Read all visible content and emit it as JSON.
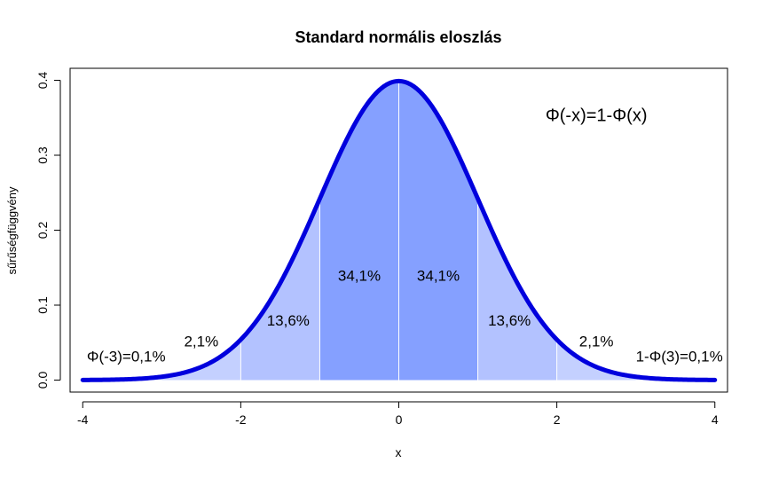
{
  "chart_data": {
    "type": "area",
    "title": "Standard normális eloszlás",
    "xlabel": "x",
    "ylabel": "sűrűségfüggvény",
    "xlim": [
      -4.16,
      4.16
    ],
    "ylim": [
      -0.016,
      0.416
    ],
    "x_ticks": [
      -4,
      -2,
      0,
      2,
      4
    ],
    "x_tick_labels": [
      "-4",
      "-2",
      "0",
      "2",
      "4"
    ],
    "y_ticks": [
      0.0,
      0.1,
      0.2,
      0.3,
      0.4
    ],
    "y_tick_labels": [
      "0.0",
      "0.1",
      "0.2",
      "0.3",
      "0.4"
    ],
    "curve": {
      "function": "standard normal density",
      "x_range": [
        -4,
        4
      ],
      "color": "#0000dd"
    },
    "regions": [
      {
        "from": -4,
        "to": -3,
        "color": "#dde4ff"
      },
      {
        "from": -3,
        "to": -2,
        "color": "#c4d0ff"
      },
      {
        "from": -2,
        "to": -1,
        "color": "#b3c2ff"
      },
      {
        "from": -1,
        "to": 0,
        "color": "#85a0ff"
      },
      {
        "from": 0,
        "to": 1,
        "color": "#85a0ff"
      },
      {
        "from": 1,
        "to": 2,
        "color": "#b3c2ff"
      },
      {
        "from": 2,
        "to": 3,
        "color": "#c4d0ff"
      },
      {
        "from": 3,
        "to": 4,
        "color": "#dde4ff"
      }
    ],
    "dividers": [
      -2,
      -1,
      0,
      1,
      2
    ],
    "annotations": [
      {
        "text": "Φ(-3)=0,1%",
        "x": -3.45,
        "y": 0.03
      },
      {
        "text": "2,1%",
        "x": -2.5,
        "y": 0.05
      },
      {
        "text": "13,6%",
        "x": -1.4,
        "y": 0.078
      },
      {
        "text": "34,1%",
        "x": -0.5,
        "y": 0.138
      },
      {
        "text": "34,1%",
        "x": 0.5,
        "y": 0.138
      },
      {
        "text": "13,6%",
        "x": 1.4,
        "y": 0.078
      },
      {
        "text": "2,1%",
        "x": 2.5,
        "y": 0.05
      },
      {
        "text": "1-Φ(3)=0,1%",
        "x": 3.55,
        "y": 0.03
      },
      {
        "text": "Φ(-x)=1-Φ(x)",
        "x": 2.5,
        "y": 0.352
      }
    ]
  }
}
